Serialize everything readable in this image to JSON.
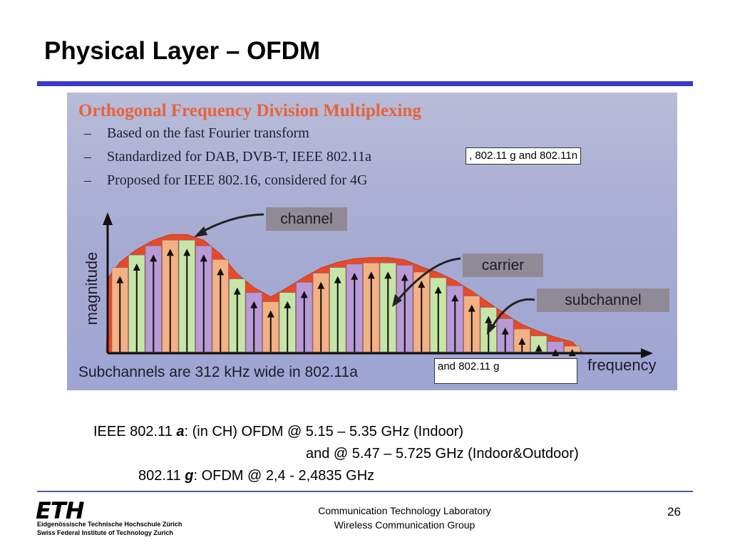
{
  "slide": {
    "title": "Physical Layer – OFDM",
    "page_number": "26"
  },
  "figure": {
    "heading": "Orthogonal Frequency Division Multiplexing",
    "bullets": [
      {
        "dash": "–",
        "text": "Based on the fast Fourier transform"
      },
      {
        "dash": "–",
        "text": "Standardized for DAB, DVB-T, IEEE 802.11a"
      },
      {
        "dash": "–",
        "text": "Proposed for IEEE 802.16, considered for 4G"
      }
    ],
    "labels": {
      "channel": "channel",
      "carrier": "carrier",
      "subchannel": "subchannel"
    },
    "axis_y": "magnitude",
    "axis_x": "frequency",
    "bottom_text": "Subchannels are 312 kHz wide in 802.11a"
  },
  "notes": {
    "standards_add": ", 802.11 g and 802.11n",
    "subchannel_add": "and 802.11 g"
  },
  "ieee": {
    "line1_prefix": "IEEE 802.11 ",
    "line1_bold": "a",
    "line1_rest": ": (in CH) OFDM @ 5.15 – 5.35 GHz (Indoor)",
    "line2": "and @ 5.47 – 5.725 GHz (Indoor&Outdoor)",
    "line3_prefix": "802.11 ",
    "line3_bold": "g",
    "line3_rest": ": OFDM @ 2,4 - 2,4835 GHz"
  },
  "footer": {
    "logo": "ETH",
    "logo_line1": "Eidgenössische Technische Hochschule Zürich",
    "logo_line2": "Swiss Federal Institute of Technology Zurich",
    "lab": "Communication Technology Laboratory",
    "group": "Wireless Communication Group"
  },
  "colors": {
    "accent_rule": "#3a3ac8",
    "heading_orange": "#e6623c",
    "bar_orange": "#f4b184",
    "bar_green": "#c6e6a8",
    "bar_purple": "#b89ad6",
    "curve_red": "#e64a2a"
  },
  "subchannel_magnitudes": [
    0.74,
    0.85,
    0.93,
    0.98,
    0.98,
    0.93,
    0.81,
    0.64,
    0.52,
    0.44,
    0.52,
    0.61,
    0.69,
    0.74,
    0.77,
    0.78,
    0.78,
    0.76,
    0.7,
    0.65,
    0.58,
    0.49,
    0.39,
    0.29,
    0.2,
    0.14,
    0.09,
    0.05
  ]
}
